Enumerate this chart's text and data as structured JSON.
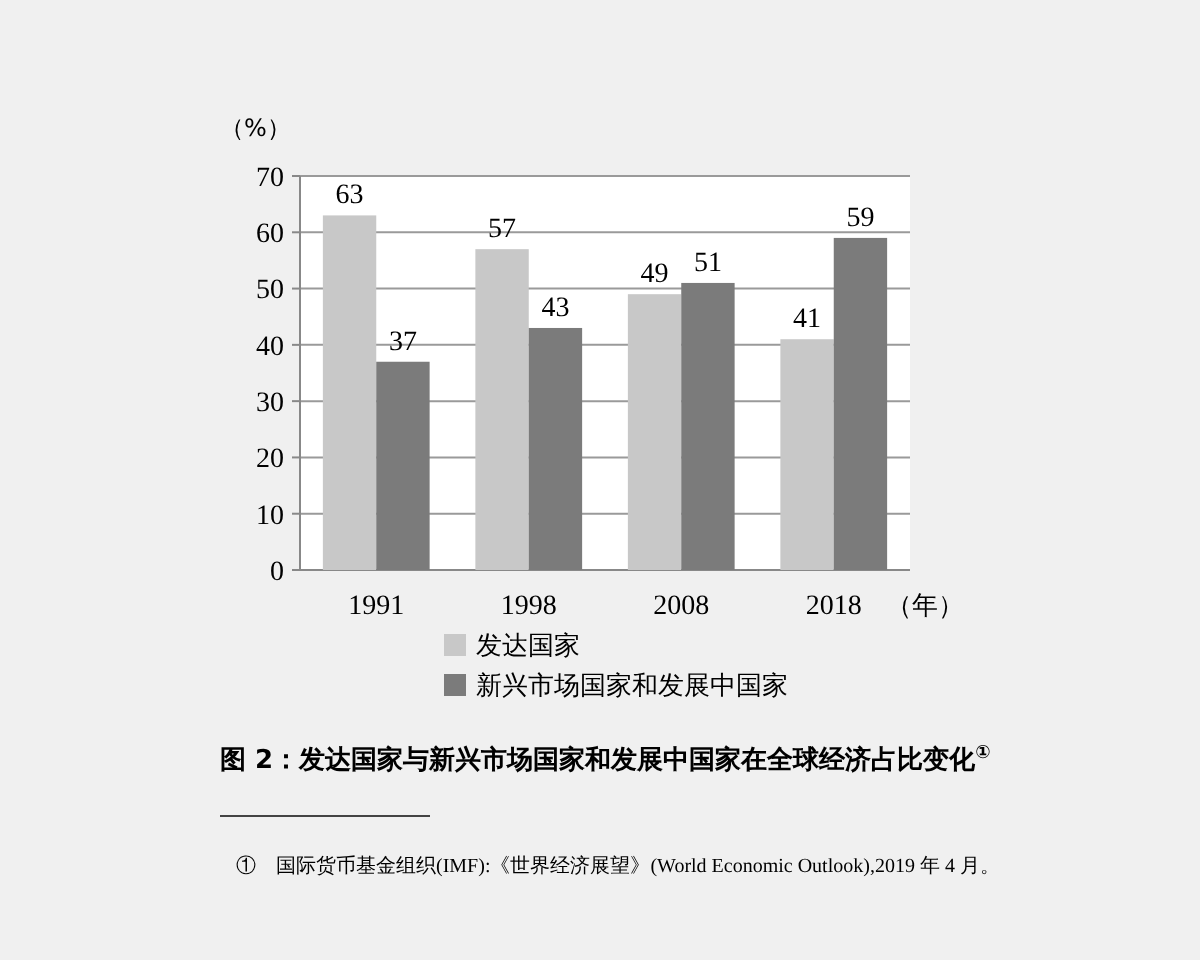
{
  "chart_data": {
    "type": "bar",
    "title": "图 2：发达国家与新兴市场国家和发展中国家在全球经济占比变化$^{①}$",
    "xlabel": "（年）",
    "ylabel": "（%）",
    "categories": [
      "1991",
      "1998",
      "2008",
      "2018"
    ],
    "series": [
      {
        "name": "发达国家",
        "color": "#c8c8c8",
        "values": [
          63,
          57,
          49,
          41
        ]
      },
      {
        "name": "新兴市场国家和发展中国家",
        "color": "#7b7b7b",
        "values": [
          37,
          43,
          51,
          59
        ]
      }
    ],
    "ylim": [
      0,
      70
    ],
    "yticks": [
      0,
      10,
      20,
      30,
      40,
      50,
      60,
      70
    ],
    "grid": "y",
    "legend": "bottom",
    "data_labels": true,
    "annotations": [
      "①　国际货币基金组织(IMF):《世界经济展望》(World Economic Outlook),2019 年 4 月。"
    ]
  }
}
